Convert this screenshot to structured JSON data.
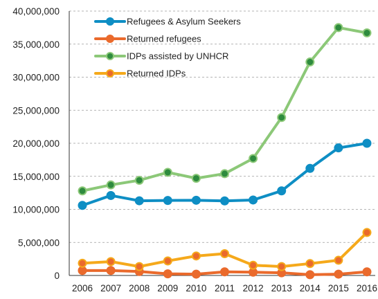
{
  "chart_data": {
    "type": "line",
    "title": "",
    "xlabel": "",
    "ylabel": "",
    "x": [
      "2006",
      "2007",
      "2008",
      "2009",
      "2010",
      "2011",
      "2012",
      "2013",
      "2014",
      "2015",
      "2016"
    ],
    "ylim": [
      0,
      40000000
    ],
    "y_ticks": [
      "0",
      "5,000,000",
      "10,000,000",
      "15,000,000",
      "20,000,000",
      "25,000,000",
      "30,000,000",
      "35,000,000",
      "40,000,000"
    ],
    "grid": "horizontal dashed",
    "legend_position": "top-left",
    "series": [
      {
        "name": "Refugees & Asylum Seekers",
        "color": "#0e8ec4",
        "values": [
          10600000,
          12100000,
          11300000,
          11350000,
          11380000,
          11280000,
          11420000,
          12800000,
          16200000,
          19300000,
          20000000
        ]
      },
      {
        "name": "Returned refugees",
        "color": "#ea6a2c",
        "values": [
          750000,
          750000,
          600000,
          250000,
          200000,
          550000,
          500000,
          400000,
          120000,
          200000,
          550000
        ]
      },
      {
        "name": "IDPs assisted by UNHCR",
        "color": "#8cc878",
        "marker_color": "#2e8b3e",
        "values": [
          12800000,
          13700000,
          14400000,
          15600000,
          14700000,
          15400000,
          17700000,
          23900000,
          32300000,
          37500000,
          36700000
        ]
      },
      {
        "name": "Returned IDPs",
        "color": "#f5a91b",
        "marker_color": "#ea6a2c",
        "values": [
          1850000,
          2100000,
          1350000,
          2200000,
          2950000,
          3300000,
          1550000,
          1350000,
          1800000,
          2300000,
          6500000
        ]
      }
    ]
  }
}
